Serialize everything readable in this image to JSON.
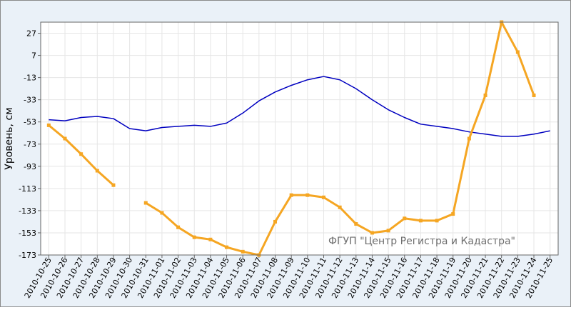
{
  "chart_data": {
    "type": "line",
    "ylabel": "Уровень, см",
    "watermark": "ФГУП \"Центр Регистра и Кадастра\"",
    "ylim": [
      -173,
      37
    ],
    "yticks": [
      27,
      7,
      -13,
      -33,
      -53,
      -73,
      -93,
      -113,
      -133,
      -153,
      -173
    ],
    "categories": [
      "2010-10-25",
      "2010-10-26",
      "2010-10-27",
      "2010-10-28",
      "2010-10-29",
      "2010-10-30",
      "2010-10-31",
      "2010-11-01",
      "2010-11-02",
      "2010-11-03",
      "2010-11-04",
      "2010-11-05",
      "2010-11-06",
      "2010-11-07",
      "2010-11-08",
      "2010-11-09",
      "2010-11-10",
      "2010-11-11",
      "2010-11-12",
      "2010-11-13",
      "2010-11-14",
      "2010-11-15",
      "2010-11-16",
      "2010-11-17",
      "2010-11-18",
      "2010-11-19",
      "2010-11-20",
      "2010-11-21",
      "2010-11-22",
      "2010-11-23",
      "2010-11-24",
      "2010-11-25"
    ],
    "grid": true,
    "series": [
      {
        "color": "#0000c0",
        "marker": false,
        "values": [
          -51,
          -52,
          -49,
          -48,
          -50,
          -59,
          -61,
          -58,
          -57,
          -56,
          -57,
          -54,
          -45,
          -34,
          -26,
          -20,
          -15,
          -12,
          -15,
          -23,
          -33,
          -42,
          -49,
          -55,
          -57,
          -59,
          -62,
          -64,
          -66,
          -66,
          -64,
          -61
        ]
      },
      {
        "color": "#f5a623",
        "marker": true,
        "values": [
          -56,
          -68,
          -82,
          -97,
          -110,
          null,
          -126,
          -135,
          -148,
          -157,
          -159,
          -166,
          -170,
          -173,
          -143,
          -119,
          -119,
          -121,
          -130,
          -145,
          -153,
          -151,
          -140,
          -142,
          -142,
          -136,
          -68,
          -29,
          37,
          10,
          -29,
          null
        ]
      }
    ]
  }
}
